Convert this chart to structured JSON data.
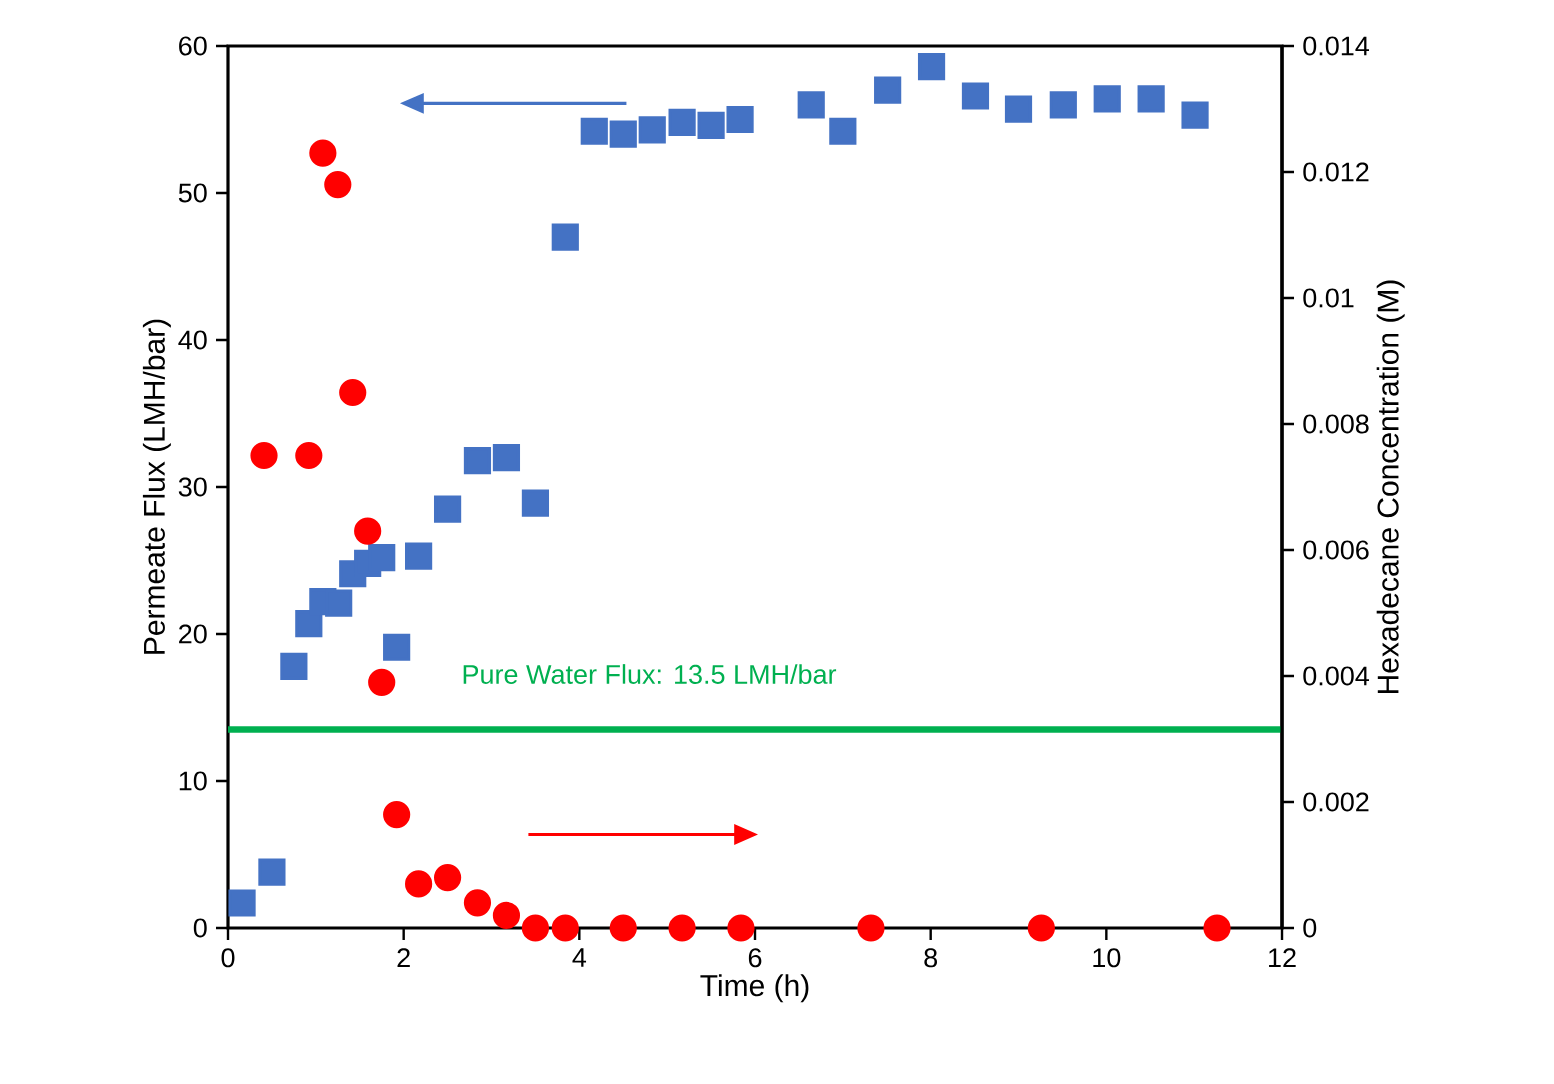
{
  "chart_data": {
    "type": "scatter",
    "xlabel": "Time (h)",
    "ylabel": "Permeate Flux (LMH/bar)",
    "y2label": "Hexadecane Concentration (M)",
    "xlim": [
      0,
      12
    ],
    "xticks": [
      0,
      2,
      4,
      6,
      8,
      10,
      12
    ],
    "ylim": [
      0,
      60
    ],
    "yticks": [
      0,
      10,
      20,
      30,
      40,
      50,
      60
    ],
    "y2lim": [
      0,
      0.014
    ],
    "y2ticks": [
      0,
      0.002,
      0.004,
      0.006,
      0.008,
      0.01,
      0.012,
      0.014
    ],
    "series": [
      {
        "color": "#4472c4",
        "marker": "square",
        "x": [
          0.16,
          0.5,
          0.75,
          0.92,
          1.08,
          1.26,
          1.42,
          1.59,
          1.75,
          1.92,
          2.17,
          2.5,
          2.84,
          3.17,
          3.5,
          3.84,
          4.17,
          4.5,
          4.83,
          5.17,
          5.5,
          5.83,
          6.64,
          7.0,
          7.51,
          8.01,
          8.51,
          9.0,
          9.51,
          10.01,
          10.51,
          11.01
        ],
        "values": [
          1.7,
          3.8,
          17.8,
          20.7,
          22.2,
          22.1,
          24.1,
          24.8,
          25.2,
          19.1,
          25.3,
          28.5,
          31.8,
          32.0,
          28.9,
          47.0,
          54.2,
          54.0,
          54.3,
          54.8,
          54.6,
          55.0,
          56.0,
          54.2,
          57.0,
          58.6,
          56.6,
          55.7,
          56.0,
          56.4,
          56.4,
          55.3
        ]
      },
      {
        "color": "#ff0000",
        "marker": "circle",
        "axis": "y2",
        "x": [
          0.41,
          0.92,
          1.08,
          1.25,
          1.42,
          1.59,
          1.75,
          1.92,
          2.17,
          2.5,
          2.84,
          3.17,
          3.5,
          3.84,
          4.5,
          5.17,
          5.84,
          7.32,
          9.26,
          11.26
        ],
        "values": [
          0.0075,
          0.0075,
          0.0123,
          0.0118,
          0.0085,
          0.0063,
          0.0039,
          0.0018,
          0.0007,
          0.0008,
          0.0004,
          0.0002,
          0,
          0,
          0,
          0,
          0,
          0,
          0,
          0
        ]
      }
    ],
    "ref_lines": [
      {
        "axis": "y",
        "value": 13.5,
        "label": "Pure Water Flux: 13.5 LMH/bar",
        "color": "#00b050"
      }
    ]
  }
}
